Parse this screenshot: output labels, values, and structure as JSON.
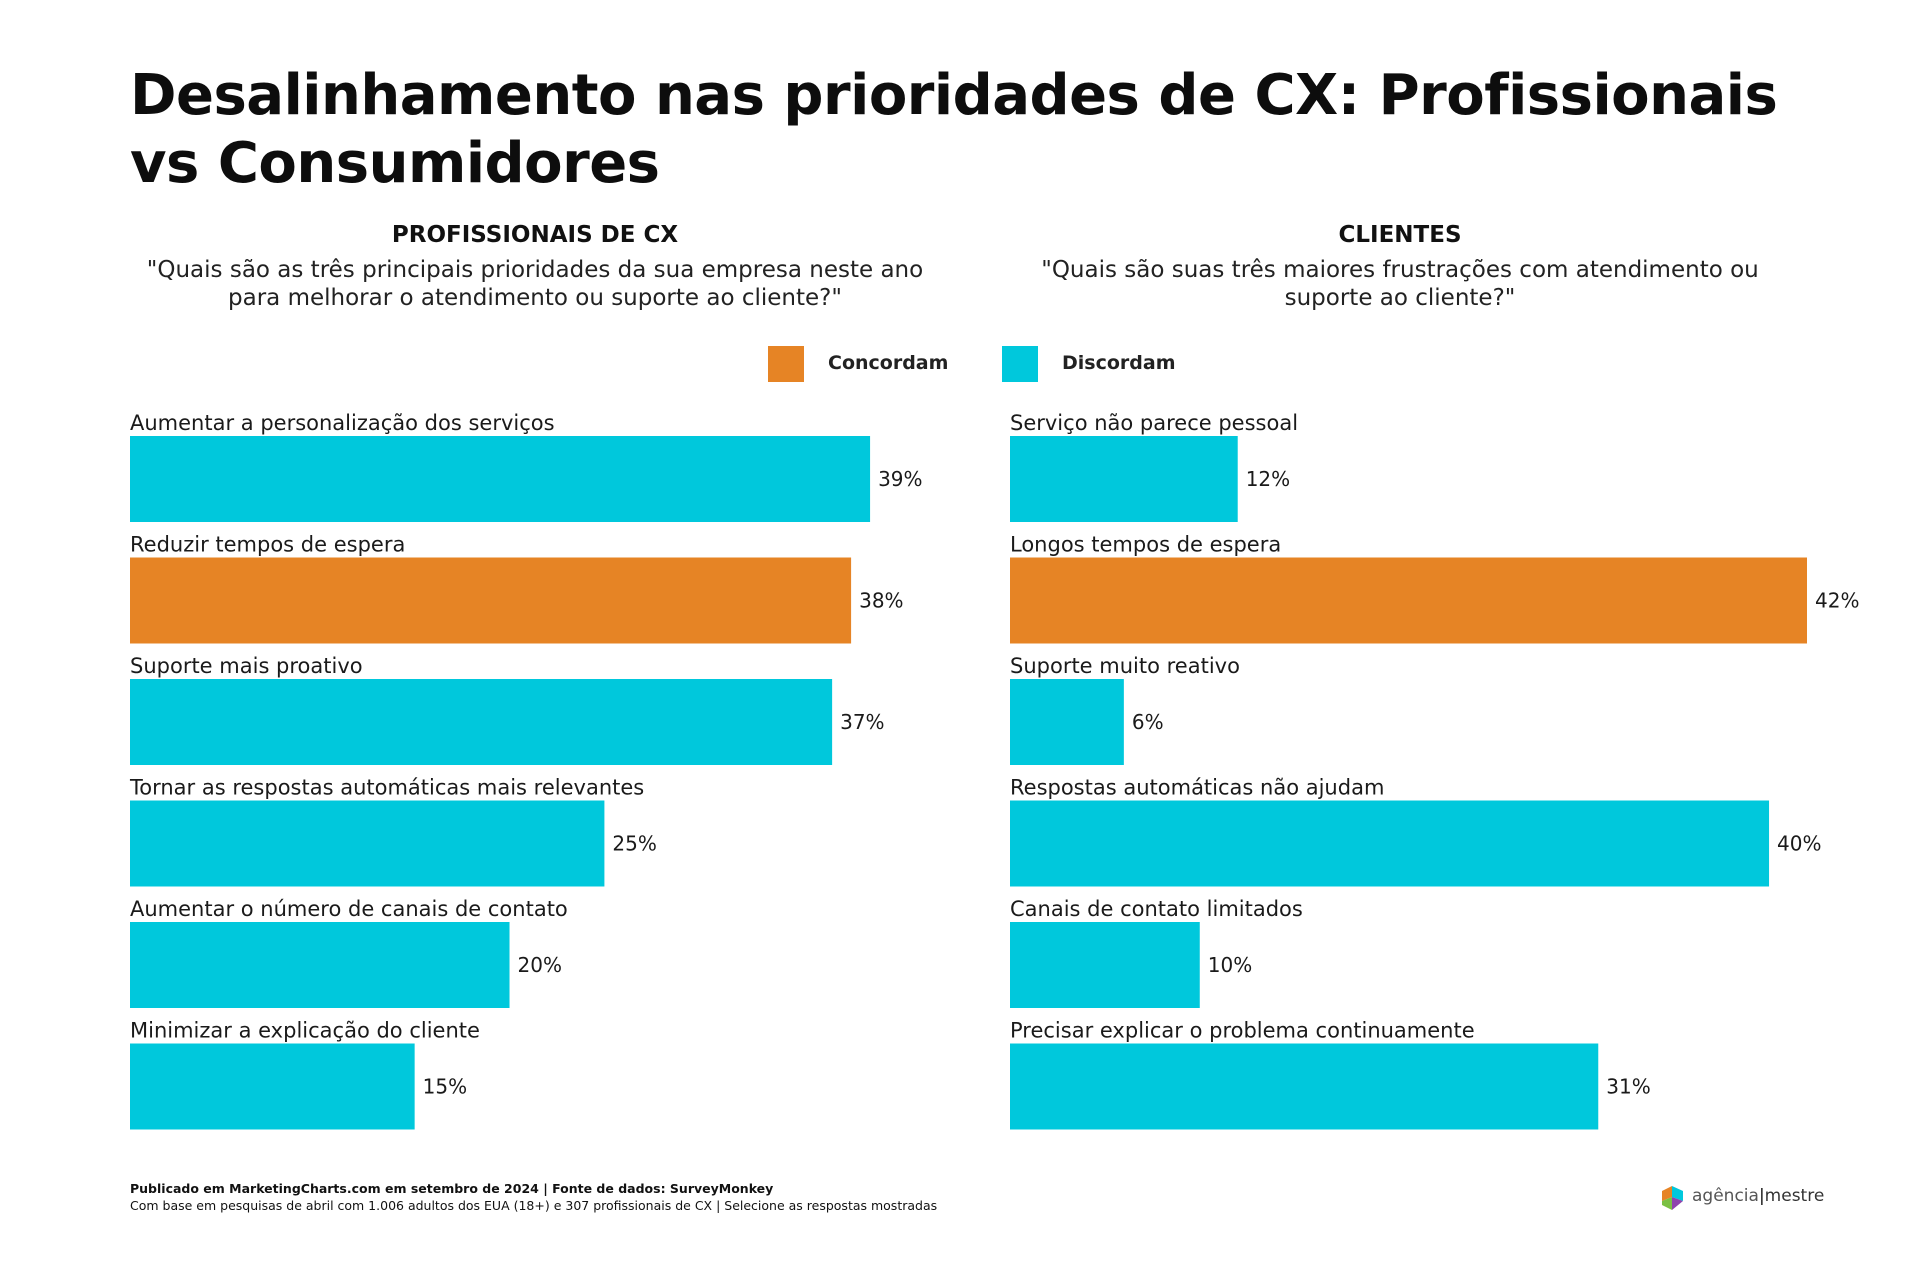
{
  "title": "Desalinhamento nas prioridades de CX: Profissionais vs Consumidores",
  "colors": {
    "agree": "#E68425",
    "disagree": "#00C8DC",
    "text": "#111111"
  },
  "left_panel": {
    "title": "PROFISSIONAIS DE CX",
    "question": "\"Quais são as três principais prioridades da sua empresa neste ano para melhorar o atendimento ou suporte ao cliente?\""
  },
  "right_panel": {
    "title": "CLIENTES",
    "question": "\"Quais são suas três maiores frustrações com atendimento ou suporte ao cliente?\""
  },
  "legend": {
    "agree": "Concordam",
    "disagree": "Discordam"
  },
  "chart_data": [
    {
      "type": "bar",
      "orientation": "horizontal",
      "title": "PROFISSIONAIS DE CX",
      "unit": "%",
      "xlim": [
        0,
        42
      ],
      "categories": [
        "Aumentar a personalização dos serviços",
        "Reduzir tempos de espera",
        "Suporte mais proativo",
        "Tornar as respostas automáticas mais relevantes",
        "Aumentar o número de canais de contato",
        "Minimizar a explicação do cliente"
      ],
      "values": [
        39,
        38,
        37,
        25,
        20,
        15
      ],
      "groups": [
        "Discordam",
        "Concordam",
        "Discordam",
        "Discordam",
        "Discordam",
        "Discordam"
      ]
    },
    {
      "type": "bar",
      "orientation": "horizontal",
      "title": "CLIENTES",
      "unit": "%",
      "xlim": [
        0,
        42
      ],
      "categories": [
        "Serviço não parece pessoal",
        "Longos tempos de espera",
        "Suporte muito reativo",
        "Respostas automáticas não ajudam",
        "Canais de contato limitados",
        "Precisar explicar o problema continuamente"
      ],
      "values": [
        12,
        42,
        6,
        40,
        10,
        31
      ],
      "groups": [
        "Discordam",
        "Concordam",
        "Discordam",
        "Discordam",
        "Discordam",
        "Discordam"
      ]
    }
  ],
  "footer": {
    "line1": "Publicado em MarketingCharts.com em setembro de 2024 | Fonte de dados: SurveyMonkey",
    "line2": "Com base em pesquisas de abril com 1.006 adultos dos EUA (18+) e 307 profissionais de CX | Selecione as respostas mostradas"
  },
  "logo": {
    "name": "agência",
    "suffix": "mestre"
  }
}
